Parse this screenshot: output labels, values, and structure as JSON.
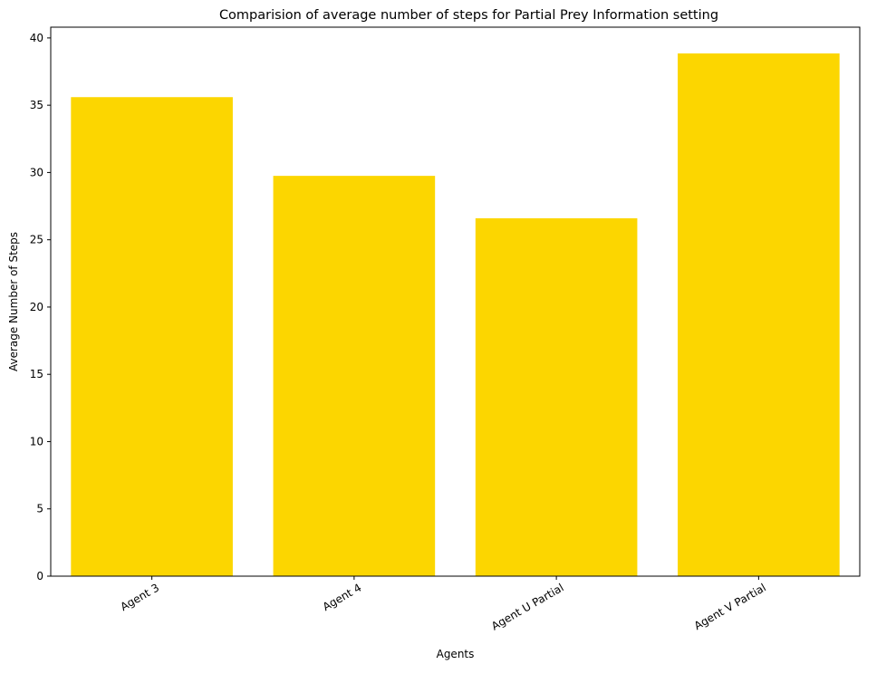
{
  "chart_data": {
    "type": "bar",
    "title": "Comparision of average number of steps for Partial Prey Information setting",
    "xlabel": "Agents",
    "ylabel": "Average Number of Steps",
    "categories": [
      "Agent 3",
      "Agent 4",
      "Agent U Partial",
      "Agent V Partial"
    ],
    "values": [
      35.6,
      29.75,
      26.6,
      38.85
    ],
    "ylim": [
      0,
      40.8
    ],
    "yticks": [
      0,
      5,
      10,
      15,
      20,
      25,
      30,
      35,
      40
    ],
    "bar_color": "#fcd600",
    "grid": false,
    "xtick_rotation_deg": -30
  }
}
